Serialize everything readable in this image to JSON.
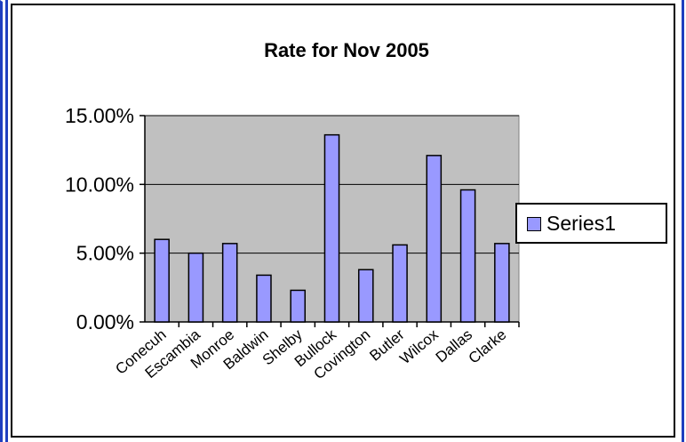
{
  "chart_data": {
    "type": "bar",
    "title": "Rate for Nov 2005",
    "categories": [
      "Conecuh",
      "Escambia",
      "Monroe",
      "Baldwin",
      "Shelby",
      "Bullock",
      "Covington",
      "Butler",
      "Wilcox",
      "Dallas",
      "Clarke"
    ],
    "series": [
      {
        "name": "Series1",
        "values": [
          0.06,
          0.05,
          0.057,
          0.034,
          0.023,
          0.136,
          0.038,
          0.056,
          0.121,
          0.096,
          0.057
        ]
      }
    ],
    "ylim": [
      0,
      0.15
    ],
    "yticks": [
      0,
      0.05,
      0.1,
      0.15
    ],
    "ytick_labels": [
      "0.00%",
      "5.00%",
      "10.00%",
      "15.00%"
    ],
    "xlabel": "",
    "ylabel": "",
    "grid": true,
    "legend_position": "right",
    "colors": {
      "bar_fill": "#9999ff",
      "plot_background": "#c0c0c0",
      "frame_accent": "#1f3fbf"
    }
  }
}
